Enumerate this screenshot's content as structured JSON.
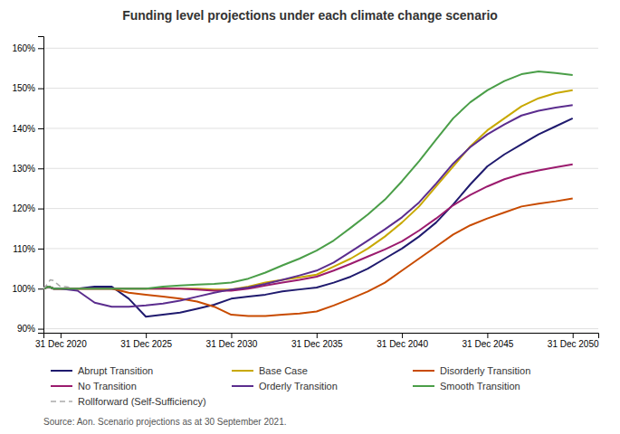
{
  "chart_data": {
    "type": "line",
    "title": "Funding level projections under each climate change scenario",
    "annotations": [
      "Source: Aon. Scenario projections as at 30 September 2021."
    ],
    "xlim": [
      2019.0,
      2051.5
    ],
    "xticks": [
      {
        "value": 2020,
        "label": "31 Dec 2020"
      },
      {
        "value": 2025,
        "label": "31 Dec 2025"
      },
      {
        "value": 2030,
        "label": "31 Dec 2030"
      },
      {
        "value": 2035,
        "label": "31 Dec 2035"
      },
      {
        "value": 2040,
        "label": "31 Dec 2040"
      },
      {
        "value": 2045,
        "label": "31 Dec 2045"
      },
      {
        "value": 2050,
        "label": "31 Dec 2050"
      }
    ],
    "ylim": [
      0.89,
      1.63
    ],
    "yticks": [
      {
        "value": 0.9,
        "label": "90%"
      },
      {
        "value": 1.0,
        "label": "100%"
      },
      {
        "value": 1.1,
        "label": "110%"
      },
      {
        "value": 1.2,
        "label": "120%"
      },
      {
        "value": 1.3,
        "label": "130%"
      },
      {
        "value": 1.4,
        "label": "140%"
      },
      {
        "value": 1.5,
        "label": "150%"
      },
      {
        "value": 1.6,
        "label": "160%"
      }
    ],
    "grid": true,
    "legend": "bottom",
    "series": [
      {
        "name": "Abrupt Transition",
        "color": "#1f1a6e",
        "x": [
          2019.0,
          2019.3,
          2019.6,
          2019.9,
          2020,
          2021,
          2022,
          2023,
          2024,
          2025,
          2026,
          2027,
          2028,
          2029,
          2030,
          2031,
          2032,
          2033,
          2034,
          2035,
          2036,
          2037,
          2038,
          2039,
          2040,
          2041,
          2042,
          2043,
          2044,
          2045,
          2046,
          2047,
          2048,
          2049,
          2050
        ],
        "values": [
          1.0,
          1.005,
          1.0,
          1.0,
          1.0,
          1.0,
          1.005,
          1.005,
          0.975,
          0.93,
          0.935,
          0.94,
          0.95,
          0.96,
          0.975,
          0.98,
          0.985,
          0.993,
          0.998,
          1.003,
          1.015,
          1.03,
          1.05,
          1.075,
          1.1,
          1.13,
          1.165,
          1.21,
          1.26,
          1.305,
          1.335,
          1.36,
          1.385,
          1.405,
          1.425
        ]
      },
      {
        "name": "Base Case",
        "color": "#c8a800",
        "x": [
          2019.0,
          2019.3,
          2019.6,
          2019.9,
          2020,
          2021,
          2022,
          2023,
          2024,
          2025,
          2026,
          2027,
          2028,
          2029,
          2030,
          2031,
          2032,
          2033,
          2034,
          2035,
          2036,
          2037,
          2038,
          2039,
          2040,
          2041,
          2042,
          2043,
          2044,
          2045,
          2046,
          2047,
          2048,
          2049,
          2050
        ],
        "values": [
          1.0,
          1.005,
          1.0,
          1.0,
          1.0,
          1.0,
          1.0,
          1.0,
          1.0,
          1.0,
          1.0,
          1.0,
          1.0,
          0.998,
          0.998,
          1.005,
          1.015,
          1.022,
          1.028,
          1.035,
          1.055,
          1.075,
          1.1,
          1.13,
          1.165,
          1.205,
          1.255,
          1.305,
          1.355,
          1.395,
          1.425,
          1.455,
          1.475,
          1.488,
          1.495
        ]
      },
      {
        "name": "Disorderly Transition",
        "color": "#c84b00",
        "x": [
          2019.0,
          2019.3,
          2019.6,
          2019.9,
          2020,
          2021,
          2022,
          2023,
          2024,
          2025,
          2026,
          2027,
          2028,
          2029,
          2030,
          2031,
          2032,
          2033,
          2034,
          2035,
          2036,
          2037,
          2038,
          2039,
          2040,
          2041,
          2042,
          2043,
          2044,
          2045,
          2046,
          2047,
          2048,
          2049,
          2050
        ],
        "values": [
          1.0,
          1.005,
          1.0,
          1.0,
          1.0,
          1.0,
          1.0,
          1.0,
          0.99,
          0.985,
          0.98,
          0.975,
          0.968,
          0.955,
          0.935,
          0.932,
          0.932,
          0.935,
          0.938,
          0.943,
          0.958,
          0.975,
          0.993,
          1.015,
          1.045,
          1.075,
          1.105,
          1.135,
          1.158,
          1.175,
          1.19,
          1.205,
          1.212,
          1.218,
          1.225
        ]
      },
      {
        "name": "No Transition",
        "color": "#9b1b6e",
        "x": [
          2019.0,
          2019.3,
          2019.6,
          2019.9,
          2020,
          2021,
          2022,
          2023,
          2024,
          2025,
          2026,
          2027,
          2028,
          2029,
          2030,
          2031,
          2032,
          2033,
          2034,
          2035,
          2036,
          2037,
          2038,
          2039,
          2040,
          2041,
          2042,
          2043,
          2044,
          2045,
          2046,
          2047,
          2048,
          2049,
          2050
        ],
        "values": [
          1.0,
          1.005,
          1.0,
          1.0,
          1.0,
          1.0,
          1.0,
          1.0,
          1.0,
          1.0,
          1.0,
          1.0,
          0.998,
          0.995,
          0.995,
          1.0,
          1.008,
          1.015,
          1.022,
          1.03,
          1.045,
          1.062,
          1.08,
          1.098,
          1.118,
          1.145,
          1.175,
          1.208,
          1.234,
          1.255,
          1.273,
          1.286,
          1.295,
          1.303,
          1.31
        ]
      },
      {
        "name": "Orderly Transition",
        "color": "#5b2d8e",
        "x": [
          2019.0,
          2019.3,
          2019.6,
          2019.9,
          2020,
          2021,
          2022,
          2023,
          2024,
          2025,
          2026,
          2027,
          2028,
          2029,
          2030,
          2031,
          2032,
          2033,
          2034,
          2035,
          2036,
          2037,
          2038,
          2039,
          2040,
          2041,
          2042,
          2043,
          2044,
          2045,
          2046,
          2047,
          2048,
          2049,
          2050
        ],
        "values": [
          1.0,
          1.005,
          1.0,
          1.0,
          1.0,
          0.995,
          0.965,
          0.955,
          0.955,
          0.958,
          0.963,
          0.97,
          0.98,
          0.99,
          0.998,
          1.003,
          1.012,
          1.022,
          1.033,
          1.045,
          1.065,
          1.092,
          1.12,
          1.148,
          1.178,
          1.215,
          1.262,
          1.312,
          1.353,
          1.385,
          1.41,
          1.432,
          1.444,
          1.452,
          1.458
        ]
      },
      {
        "name": "Smooth Transition",
        "color": "#4a9e48",
        "x": [
          2019.0,
          2019.3,
          2019.6,
          2019.9,
          2020,
          2021,
          2022,
          2023,
          2024,
          2025,
          2026,
          2027,
          2028,
          2029,
          2030,
          2031,
          2032,
          2033,
          2034,
          2035,
          2036,
          2037,
          2038,
          2039,
          2040,
          2041,
          2042,
          2043,
          2044,
          2045,
          2046,
          2047,
          2048,
          2049,
          2050
        ],
        "values": [
          1.0,
          1.005,
          1.0,
          1.0,
          1.0,
          1.0,
          1.0,
          1.0,
          1.0,
          1.0,
          1.005,
          1.008,
          1.01,
          1.012,
          1.015,
          1.025,
          1.04,
          1.058,
          1.075,
          1.095,
          1.12,
          1.152,
          1.185,
          1.222,
          1.268,
          1.318,
          1.372,
          1.425,
          1.465,
          1.495,
          1.518,
          1.535,
          1.542,
          1.538,
          1.533
        ]
      },
      {
        "name": "Rollforward (Self-Sufficiency)",
        "color": "#aaaaaa",
        "line_style": "dashed",
        "x": [
          2019.0,
          2019.2,
          2019.4,
          2019.6,
          2019.8,
          2020.0,
          2020.3,
          2020.6
        ],
        "values": [
          1.0,
          1.01,
          1.022,
          1.02,
          1.012,
          1.005,
          1.005,
          1.003
        ]
      }
    ]
  }
}
